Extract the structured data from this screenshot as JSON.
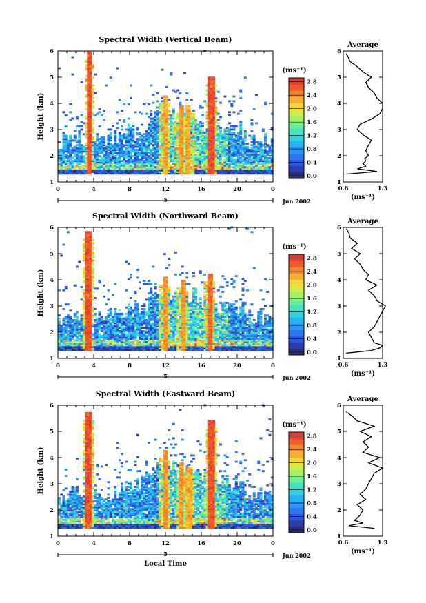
{
  "chart_data": [
    {
      "type": "heatmap",
      "title": "Spectral Width (Vertical Beam)",
      "xlabel": "",
      "ylabel": "Height (km)",
      "xlim": [
        0,
        24
      ],
      "ylim": [
        1,
        6
      ],
      "xticks": [
        "0",
        "4",
        "8",
        "12",
        "16",
        "20",
        "0"
      ],
      "yticks": [
        "1",
        "2",
        "3",
        "4",
        "5",
        "6"
      ],
      "day_label": "5",
      "date_label": "Jun 2002",
      "colorbar": {
        "unit": "(ms⁻¹)",
        "ticks": [
          "0.0",
          "0.4",
          "0.8",
          "1.2",
          "1.6",
          "2.0",
          "2.4",
          "2.8"
        ],
        "range": [
          0,
          3.0
        ]
      },
      "average": {
        "title": "Average",
        "xlabel": "(ms⁻¹)",
        "xticks": [
          "0.6",
          "1.3"
        ],
        "xlim": [
          0.6,
          1.3
        ],
        "height": [
          1.3,
          1.4,
          1.5,
          1.6,
          1.7,
          1.8,
          1.9,
          2.0,
          2.2,
          2.4,
          2.6,
          2.8,
          3.0,
          3.2,
          3.4,
          3.6,
          3.8,
          4.0,
          4.2,
          4.4,
          4.6,
          4.8,
          5.0,
          5.2,
          5.4,
          5.6,
          5.8,
          5.9
        ],
        "value": [
          0.65,
          1.2,
          0.85,
          1.0,
          0.95,
          1.0,
          0.98,
          1.05,
          1.0,
          1.05,
          1.1,
          0.95,
          0.85,
          0.9,
          1.1,
          1.25,
          1.3,
          1.3,
          1.2,
          1.15,
          1.05,
          1.0,
          1.1,
          0.95,
          0.85,
          0.72,
          0.68,
          0.65
        ]
      },
      "events": [
        {
          "hour": 3.4,
          "top": 5.95,
          "level": 2.9
        },
        {
          "hour": 11.8,
          "top": 4.3,
          "level": 2.5
        },
        {
          "hour": 13.6,
          "top": 3.9,
          "level": 2.6
        },
        {
          "hour": 14.4,
          "top": 3.9,
          "level": 2.5
        },
        {
          "hour": 17.0,
          "top": 5.0,
          "level": 2.9
        }
      ]
    },
    {
      "type": "heatmap",
      "title": "Spectral Width (Northward Beam)",
      "xlabel": "",
      "ylabel": "Height (km)",
      "xlim": [
        0,
        24
      ],
      "ylim": [
        1,
        6
      ],
      "xticks": [
        "0",
        "4",
        "8",
        "12",
        "16",
        "20",
        "0"
      ],
      "yticks": [
        "1",
        "2",
        "3",
        "4",
        "5",
        "6"
      ],
      "day_label": "5",
      "date_label": "Jun 2002",
      "colorbar": {
        "unit": "(ms⁻¹)",
        "ticks": [
          "0.0",
          "0.4",
          "0.8",
          "1.2",
          "1.6",
          "2.0",
          "2.4",
          "2.8"
        ],
        "range": [
          0,
          3.0
        ]
      },
      "average": {
        "title": "Average",
        "xlabel": "(ms⁻¹)",
        "xticks": [
          "0.6",
          "1.3"
        ],
        "xlim": [
          0.6,
          1.3
        ],
        "height": [
          1.2,
          1.3,
          1.4,
          1.5,
          1.6,
          1.8,
          2.0,
          2.2,
          2.4,
          2.6,
          2.8,
          3.0,
          3.2,
          3.4,
          3.6,
          3.8,
          4.0,
          4.2,
          4.4,
          4.6,
          4.8,
          5.0,
          5.2,
          5.4,
          5.6,
          5.8,
          5.95
        ],
        "value": [
          0.65,
          1.1,
          1.25,
          1.3,
          1.15,
          1.1,
          1.05,
          1.15,
          1.2,
          1.25,
          1.3,
          1.35,
          1.2,
          1.15,
          1.05,
          1.2,
          1.0,
          1.05,
          0.95,
          0.9,
          0.8,
          0.9,
          0.75,
          0.85,
          0.72,
          0.7,
          0.65
        ]
      },
      "events": [
        {
          "hour": 3.3,
          "top": 5.85,
          "level": 2.9
        },
        {
          "hour": 11.8,
          "top": 4.1,
          "level": 2.6
        },
        {
          "hour": 13.8,
          "top": 4.0,
          "level": 2.6
        },
        {
          "hour": 16.8,
          "top": 4.2,
          "level": 2.8
        }
      ]
    },
    {
      "type": "heatmap",
      "title": "Spectral Width (Eastward Beam)",
      "xlabel": "Local Time",
      "ylabel": "Height (km)",
      "xlim": [
        0,
        24
      ],
      "ylim": [
        1,
        6
      ],
      "xticks": [
        "0",
        "4",
        "8",
        "12",
        "16",
        "20",
        "0"
      ],
      "yticks": [
        "1",
        "2",
        "3",
        "4",
        "5",
        "6"
      ],
      "day_label": "5",
      "date_label": "Jun 2002",
      "colorbar": {
        "unit": "(ms⁻¹)",
        "ticks": [
          "0.0",
          "0.4",
          "0.8",
          "1.2",
          "1.6",
          "2.0",
          "2.4",
          "2.8"
        ],
        "range": [
          0,
          3.0
        ]
      },
      "average": {
        "title": "Average",
        "xlabel": "(ms⁻¹)",
        "xticks": [
          "0.6",
          "1.3"
        ],
        "xlim": [
          0.6,
          1.3
        ],
        "height": [
          1.3,
          1.4,
          1.5,
          1.6,
          1.8,
          2.0,
          2.2,
          2.4,
          2.6,
          2.8,
          3.0,
          3.2,
          3.4,
          3.6,
          3.8,
          4.0,
          4.2,
          4.4,
          4.6,
          4.8,
          5.0,
          5.2,
          5.4,
          5.6,
          5.75
        ],
        "value": [
          1.15,
          0.7,
          0.95,
          0.8,
          0.9,
          0.95,
          0.85,
          1.0,
          0.9,
          1.0,
          1.05,
          1.1,
          1.15,
          1.3,
          1.05,
          1.25,
          0.95,
          1.05,
          0.95,
          1.1,
          0.9,
          1.15,
          0.85,
          0.75,
          0.65
        ]
      },
      "events": [
        {
          "hour": 3.3,
          "top": 5.7,
          "level": 2.9
        },
        {
          "hour": 11.8,
          "top": 4.3,
          "level": 2.6
        },
        {
          "hour": 13.7,
          "top": 3.8,
          "level": 2.6
        },
        {
          "hour": 14.5,
          "top": 3.6,
          "level": 2.5
        },
        {
          "hour": 17.0,
          "top": 5.4,
          "level": 2.9
        }
      ]
    }
  ]
}
